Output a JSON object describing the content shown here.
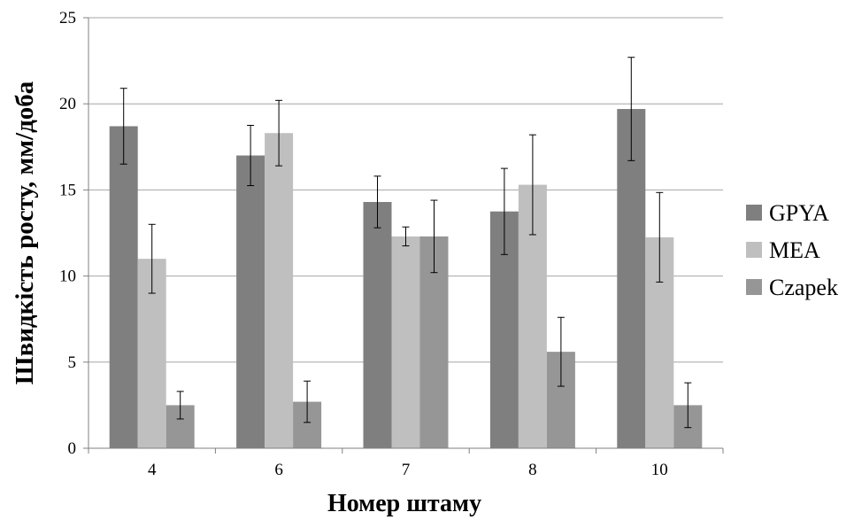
{
  "chart_data": {
    "type": "bar",
    "categories": [
      "4",
      "6",
      "7",
      "8",
      "10"
    ],
    "series": [
      {
        "name": "GPYA",
        "values": [
          18.7,
          17.0,
          14.3,
          13.75,
          19.7
        ],
        "errors": [
          2.2,
          1.75,
          1.5,
          2.5,
          3.0
        ],
        "color": "#7f7f7f"
      },
      {
        "name": "MEA",
        "values": [
          11.0,
          18.3,
          12.3,
          15.3,
          12.25
        ],
        "errors": [
          2.0,
          1.9,
          0.55,
          2.9,
          2.6
        ],
        "color": "#bfbfbf"
      },
      {
        "name": "Czapek",
        "values": [
          2.5,
          2.7,
          12.3,
          5.6,
          2.5
        ],
        "errors": [
          0.8,
          1.2,
          2.1,
          2.0,
          1.3
        ],
        "color": "#969696"
      }
    ],
    "xlabel": "Номер штаму",
    "ylabel": "Швидкість росту, мм/доба",
    "ylim": [
      0,
      25
    ],
    "yticks": [
      0,
      5,
      10,
      15,
      20,
      25
    ],
    "grid": true,
    "legend": "right"
  }
}
